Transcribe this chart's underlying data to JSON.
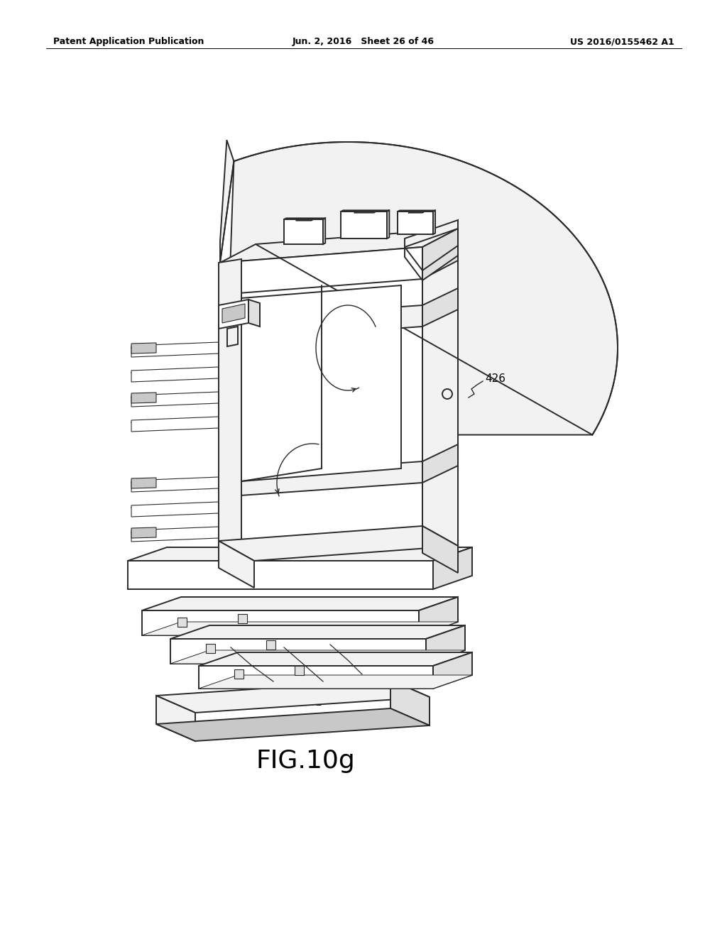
{
  "background_color": "#ffffff",
  "header_left": "Patent Application Publication",
  "header_center": "Jun. 2, 2016   Sheet 26 of 46",
  "header_right": "US 2016/0155462 A1",
  "figure_label": "FIG.10g",
  "line_color": "#2a2a2a",
  "face_white": "#ffffff",
  "face_light": "#f2f2f2",
  "face_mid": "#e0e0e0",
  "face_dark": "#c8c8c8",
  "label_fontsize": 11,
  "header_fontsize": 9
}
